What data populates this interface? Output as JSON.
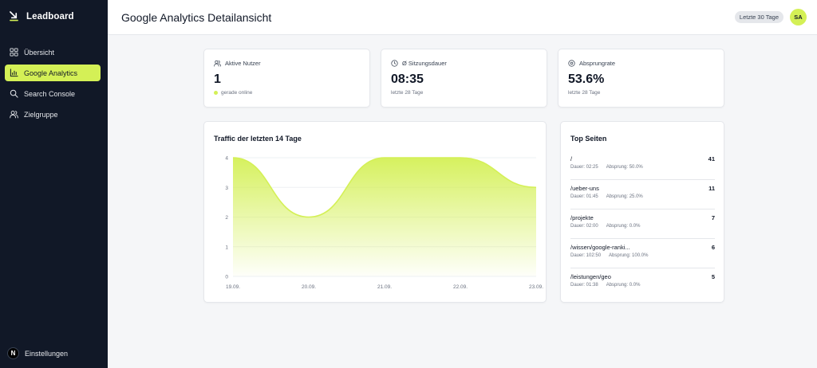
{
  "brand": {
    "name": "Leadboard",
    "logo_icon": "download-arrow-icon"
  },
  "nav": {
    "items": [
      {
        "label": "Übersicht",
        "icon": "grid-icon",
        "active": false
      },
      {
        "label": "Google Analytics",
        "icon": "bar-chart-icon",
        "active": true
      },
      {
        "label": "Search Console",
        "icon": "search-icon",
        "active": false
      },
      {
        "label": "Zielgruppe",
        "icon": "users-icon",
        "active": false
      }
    ],
    "settings_label": "Einstellungen",
    "settings_badge": "N"
  },
  "header": {
    "title": "Google Analytics Detailansicht",
    "range_label": "Letzte 30 Tage",
    "avatar_initials": "SA"
  },
  "stats": [
    {
      "label": "Aktive Nutzer",
      "icon": "users-icon",
      "value": "1",
      "sub": "gerade online"
    },
    {
      "label": "Ø Sitzungsdauer",
      "icon": "clock-icon",
      "value": "08:35",
      "sub": "letzte 28 Tage"
    },
    {
      "label": "Absprungrate",
      "icon": "target-icon",
      "value": "53.6%",
      "sub": "letzte 28 Tage"
    }
  ],
  "traffic": {
    "title": "Traffic der letzten 14 Tage",
    "accent": "#d4f056",
    "chart_data": {
      "type": "area",
      "title": "Traffic der letzten 14 Tage",
      "x": [
        "19.09.",
        "20.09.",
        "21.09.",
        "22.09.",
        "23.09."
      ],
      "series": [
        {
          "values": [
            4,
            2,
            4,
            4,
            3
          ]
        }
      ],
      "y_ticks": [
        0,
        1,
        2,
        3,
        4
      ],
      "ylim": [
        0,
        4
      ],
      "grid": true,
      "color": "#d4f056"
    }
  },
  "top_pages": {
    "title": "Top Seiten",
    "items": [
      {
        "path": "/",
        "count": "41",
        "duration": "Dauer: 02:25",
        "bounce": "Absprung: 50.0%"
      },
      {
        "path": "/ueber-uns",
        "count": "11",
        "duration": "Dauer: 01:45",
        "bounce": "Absprung: 25.0%"
      },
      {
        "path": "/projekte",
        "count": "7",
        "duration": "Dauer: 02:00",
        "bounce": "Absprung: 0.0%"
      },
      {
        "path": "/wissen/google-ranki...",
        "count": "6",
        "duration": "Dauer: 102:50",
        "bounce": "Absprung: 100.0%"
      },
      {
        "path": "/leistungen/geo",
        "count": "5",
        "duration": "Dauer: 01:38",
        "bounce": "Absprung: 0.0%"
      }
    ]
  }
}
